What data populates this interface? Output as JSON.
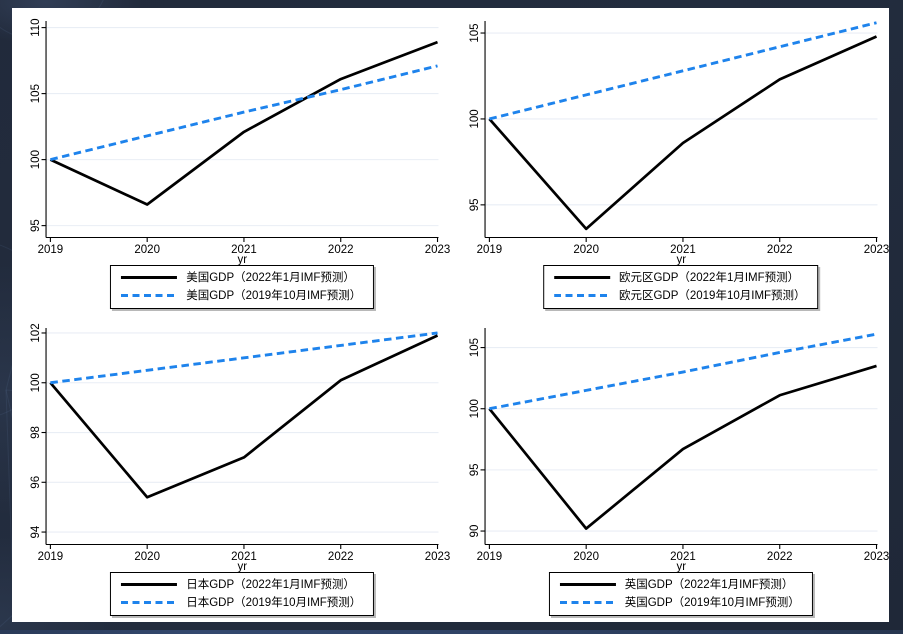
{
  "page": {
    "background_color": "#232d3f",
    "panel_color": "#ffffff"
  },
  "colors": {
    "solid_line": "#000000",
    "dashed_line": "#1e83ec",
    "gridline": "#e9eef5",
    "axis": "#000000",
    "legend_border": "#000000"
  },
  "chart_data": [
    {
      "type": "line",
      "country": "美国",
      "x": [
        2019,
        2020,
        2021,
        2022,
        2023
      ],
      "xlabel": "yr",
      "yticks": [
        95,
        100,
        105,
        110
      ],
      "ylim": [
        94.1,
        110.5
      ],
      "grid": true,
      "legend_position": "bottom",
      "series": [
        {
          "name": "美国GDP（2022年1月IMF预测）",
          "style": "solid",
          "values": [
            100,
            96.6,
            102.1,
            106.1,
            108.9
          ]
        },
        {
          "name": "美国GDP（2019年10月IMF预测）",
          "style": "dashed",
          "values": [
            100,
            101.8,
            103.6,
            105.3,
            107.1
          ]
        }
      ]
    },
    {
      "type": "line",
      "country": "欧元区",
      "x": [
        2019,
        2020,
        2021,
        2022,
        2023
      ],
      "xlabel": "yr",
      "yticks": [
        95,
        100,
        105
      ],
      "ylim": [
        93.1,
        105.7
      ],
      "grid": true,
      "legend_position": "bottom",
      "series": [
        {
          "name": "欧元区GDP（2022年1月IMF预测）",
          "style": "solid",
          "values": [
            100,
            93.6,
            98.6,
            102.3,
            104.8
          ]
        },
        {
          "name": "欧元区GDP（2019年10月IMF预测）",
          "style": "dashed",
          "values": [
            100,
            101.4,
            102.8,
            104.2,
            105.6
          ]
        }
      ]
    },
    {
      "type": "line",
      "country": "日本",
      "x": [
        2019,
        2020,
        2021,
        2022,
        2023
      ],
      "xlabel": "yr",
      "yticks": [
        94,
        96,
        98,
        100,
        102
      ],
      "ylim": [
        93.5,
        102.2
      ],
      "grid": true,
      "legend_position": "bottom",
      "series": [
        {
          "name": "日本GDP（2022年1月IMF预测）",
          "style": "solid",
          "values": [
            100,
            95.4,
            97.0,
            100.1,
            101.9
          ]
        },
        {
          "name": "日本GDP（2019年10月IMF预测）",
          "style": "dashed",
          "values": [
            100,
            100.5,
            101.0,
            101.5,
            102.0
          ]
        }
      ]
    },
    {
      "type": "line",
      "country": "英国",
      "x": [
        2019,
        2020,
        2021,
        2022,
        2023
      ],
      "xlabel": "yr",
      "yticks": [
        90,
        95,
        100,
        105
      ],
      "ylim": [
        88.9,
        106.6
      ],
      "grid": true,
      "legend_position": "bottom",
      "series": [
        {
          "name": "英国GDP（2022年1月IMF预测）",
          "style": "solid",
          "values": [
            100,
            90.2,
            96.7,
            101.1,
            103.5
          ]
        },
        {
          "name": "英国GDP（2019年10月IMF预测）",
          "style": "dashed",
          "values": [
            100,
            101.5,
            103.0,
            104.6,
            106.1
          ]
        }
      ]
    }
  ]
}
